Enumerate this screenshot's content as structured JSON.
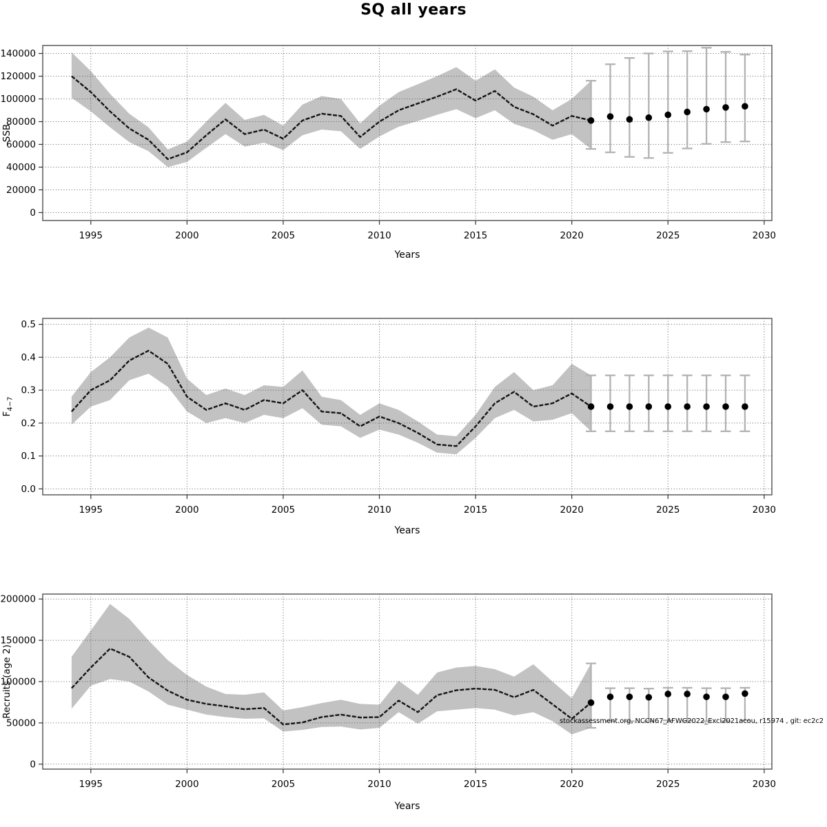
{
  "title": "SQ all years",
  "footnote": "stockassessment.org, NCCN67_AFWG2022_Excl2021acou, r15974 , git: ec2c2",
  "colors": {
    "band": "#c2c2c2",
    "line": "#141414",
    "grid": "#5a5a5a",
    "frame": "#5a5a5a",
    "error_bar": "#b2b2b2",
    "dot": "#000000"
  },
  "x_axis": {
    "label": "Years",
    "ticks": [
      1995,
      2000,
      2005,
      2010,
      2015,
      2020,
      2025,
      2030
    ],
    "lim": [
      1992.5,
      2030.4
    ]
  },
  "chart_data": [
    {
      "type": "line",
      "name": "ssb",
      "ylabel": "SSB",
      "ylabel_sub": "",
      "ylim": [
        -7000,
        147000
      ],
      "yticks": [
        0,
        20000,
        40000,
        60000,
        80000,
        100000,
        120000,
        140000
      ],
      "ytick_labels": [
        "0",
        "20000",
        "40000",
        "60000",
        "80000",
        "100000",
        "120000",
        "140000"
      ],
      "x": [
        1994,
        1995,
        1996,
        1997,
        1998,
        1999,
        2000,
        2001,
        2002,
        2003,
        2004,
        2005,
        2006,
        2007,
        2008,
        2009,
        2010,
        2011,
        2012,
        2013,
        2014,
        2015,
        2016,
        2017,
        2018,
        2019,
        2020,
        2021
      ],
      "values": [
        120000,
        106000,
        89000,
        74000,
        64000,
        47000,
        53000,
        68000,
        82000,
        69000,
        73000,
        65000,
        81000,
        87000,
        85000,
        66500,
        80000,
        90000,
        96000,
        102000,
        108500,
        98500,
        107000,
        93000,
        86500,
        76500,
        85000,
        81000
      ],
      "lower": [
        101000,
        89000,
        75000,
        62000,
        54000,
        40000,
        44500,
        57000,
        69000,
        58000,
        61500,
        55000,
        68000,
        73000,
        71500,
        56000,
        67000,
        75500,
        80500,
        86000,
        91000,
        83000,
        90000,
        78000,
        72500,
        64000,
        69000,
        56000
      ],
      "upper": [
        141000,
        124500,
        104500,
        87000,
        75000,
        55500,
        62500,
        80000,
        96500,
        81500,
        86000,
        76500,
        95000,
        102500,
        100000,
        78500,
        94000,
        106000,
        113000,
        120000,
        128000,
        116000,
        126000,
        110000,
        102000,
        90000,
        100000,
        116000
      ],
      "forecast": {
        "x": [
          2021,
          2022,
          2023,
          2024,
          2025,
          2026,
          2027,
          2028,
          2029
        ],
        "values": [
          81000,
          84500,
          82000,
          83500,
          86000,
          88500,
          91000,
          92500,
          93500
        ],
        "lower": [
          56000,
          53000,
          49000,
          48000,
          52500,
          56400,
          60400,
          62000,
          62600
        ],
        "upper": [
          116000,
          130500,
          136000,
          140000,
          141800,
          142000,
          145000,
          141400,
          139000
        ]
      }
    },
    {
      "type": "line",
      "name": "f",
      "ylabel": "F",
      "ylabel_sub": "4−7",
      "ylim": [
        -0.018,
        0.518
      ],
      "yticks": [
        0.0,
        0.1,
        0.2,
        0.3,
        0.4,
        0.5
      ],
      "ytick_labels": [
        "0.0",
        "0.1",
        "0.2",
        "0.3",
        "0.4",
        "0.5"
      ],
      "x": [
        1994,
        1995,
        1996,
        1997,
        1998,
        1999,
        2000,
        2001,
        2002,
        2003,
        2004,
        2005,
        2006,
        2007,
        2008,
        2009,
        2010,
        2011,
        2012,
        2013,
        2014,
        2015,
        2016,
        2017,
        2018,
        2019,
        2020,
        2021
      ],
      "values": [
        0.235,
        0.3,
        0.33,
        0.39,
        0.42,
        0.38,
        0.28,
        0.24,
        0.26,
        0.24,
        0.27,
        0.26,
        0.3,
        0.235,
        0.23,
        0.19,
        0.22,
        0.2,
        0.17,
        0.135,
        0.13,
        0.19,
        0.26,
        0.295,
        0.25,
        0.26,
        0.29,
        0.25
      ],
      "lower": [
        0.195,
        0.25,
        0.27,
        0.33,
        0.35,
        0.31,
        0.235,
        0.2,
        0.215,
        0.2,
        0.225,
        0.215,
        0.245,
        0.195,
        0.19,
        0.155,
        0.18,
        0.165,
        0.14,
        0.11,
        0.105,
        0.155,
        0.215,
        0.24,
        0.205,
        0.21,
        0.23,
        0.175
      ],
      "upper": [
        0.28,
        0.355,
        0.4,
        0.46,
        0.49,
        0.46,
        0.335,
        0.285,
        0.305,
        0.285,
        0.315,
        0.31,
        0.36,
        0.28,
        0.27,
        0.225,
        0.26,
        0.24,
        0.205,
        0.165,
        0.16,
        0.225,
        0.31,
        0.355,
        0.3,
        0.315,
        0.38,
        0.345
      ],
      "forecast": {
        "x": [
          2021,
          2022,
          2023,
          2024,
          2025,
          2026,
          2027,
          2028,
          2029
        ],
        "values": [
          0.25,
          0.25,
          0.25,
          0.25,
          0.25,
          0.25,
          0.25,
          0.25,
          0.25
        ],
        "lower": [
          0.175,
          0.175,
          0.175,
          0.175,
          0.175,
          0.175,
          0.175,
          0.175,
          0.175
        ],
        "upper": [
          0.345,
          0.345,
          0.345,
          0.345,
          0.345,
          0.345,
          0.345,
          0.345,
          0.345
        ]
      }
    },
    {
      "type": "line",
      "name": "recruits",
      "ylabel": "Recruits (age 2)",
      "ylabel_sub": "",
      "ylim": [
        -6000,
        206000
      ],
      "yticks": [
        0,
        50000,
        100000,
        150000,
        200000
      ],
      "ytick_labels": [
        "0",
        "50000",
        "100000",
        "150000",
        "200000"
      ],
      "x": [
        1994,
        1995,
        1996,
        1997,
        1998,
        1999,
        2000,
        2001,
        2002,
        2003,
        2004,
        2005,
        2006,
        2007,
        2008,
        2009,
        2010,
        2011,
        2012,
        2013,
        2014,
        2015,
        2016,
        2017,
        2018,
        2019,
        2020,
        2021
      ],
      "values": [
        92000,
        117000,
        140000,
        130000,
        105000,
        89000,
        78000,
        73000,
        70000,
        66500,
        68000,
        48000,
        50500,
        57000,
        60000,
        56500,
        57000,
        77000,
        63000,
        83500,
        89500,
        91500,
        90000,
        81000,
        90000,
        72500,
        55000,
        74500
      ],
      "lower": [
        67000,
        95000,
        103000,
        100000,
        88000,
        72000,
        66000,
        60000,
        57000,
        55000,
        55500,
        39500,
        41500,
        45000,
        45500,
        42000,
        44000,
        63000,
        49000,
        64000,
        66000,
        68000,
        66000,
        59000,
        63000,
        52000,
        36000,
        44000
      ],
      "upper": [
        130000,
        162000,
        194000,
        176000,
        150000,
        126000,
        108000,
        94000,
        85000,
        84000,
        87000,
        65000,
        69000,
        74000,
        78000,
        73000,
        72000,
        101000,
        84000,
        111000,
        117000,
        119000,
        115000,
        106000,
        121000,
        100000,
        80000,
        122000
      ],
      "forecast": {
        "x": [
          2021,
          2022,
          2023,
          2024,
          2025,
          2026,
          2027,
          2028,
          2029
        ],
        "values": [
          74500,
          81500,
          81500,
          81000,
          85000,
          85000,
          81500,
          81500,
          85500
        ],
        "lower": [
          44000,
          52000,
          52000,
          52000,
          53000,
          52500,
          52000,
          52000,
          53000
        ],
        "upper": [
          122000,
          92000,
          92000,
          91500,
          92500,
          92500,
          92000,
          92000,
          92500
        ]
      }
    }
  ]
}
